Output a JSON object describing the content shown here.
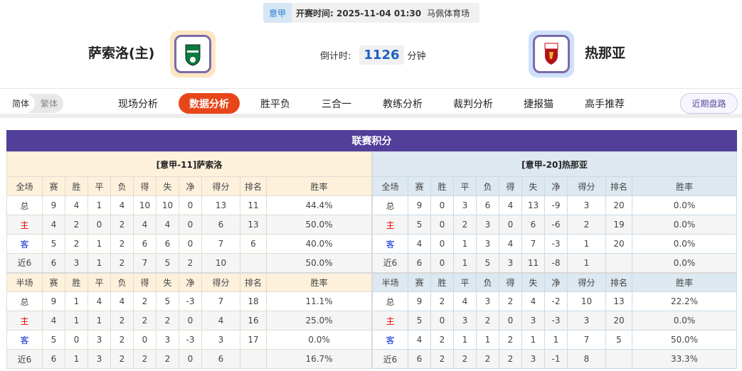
{
  "header": {
    "league": "意甲",
    "kickoff": "开赛时间: 2025-11-04 01:30",
    "venue": "马佩体育场",
    "home_team": "萨索洛(主)",
    "away_team": "热那亚",
    "countdown_label": "倒计时:",
    "countdown_value": "1126",
    "countdown_unit": "分钟"
  },
  "nav": {
    "lang": [
      "简体",
      "繁体"
    ],
    "items": [
      "现场分析",
      "数据分析",
      "胜平负",
      "三合一",
      "教练分析",
      "裁判分析",
      "捷报猫",
      "高手推荐"
    ],
    "active": "数据分析",
    "recent": "近期盘路"
  },
  "colors": {
    "accent": "#e8461a",
    "panel": "#523f9a"
  },
  "standings": {
    "title": "联赛积分",
    "full_headers": [
      "全场",
      "赛",
      "胜",
      "平",
      "负",
      "得",
      "失",
      "净",
      "得分",
      "排名",
      "胜率"
    ],
    "half_headers": [
      "半场",
      "赛",
      "胜",
      "平",
      "负",
      "得",
      "失",
      "净",
      "得分",
      "排名",
      "胜率"
    ],
    "home": {
      "title": "[意甲-11]萨索洛",
      "full": [
        [
          "总",
          "9",
          "4",
          "1",
          "4",
          "10",
          "10",
          "0",
          "13",
          "11",
          "44.4%"
        ],
        [
          "主",
          "4",
          "2",
          "0",
          "2",
          "4",
          "4",
          "0",
          "6",
          "13",
          "50.0%"
        ],
        [
          "客",
          "5",
          "2",
          "1",
          "2",
          "6",
          "6",
          "0",
          "7",
          "6",
          "40.0%"
        ],
        [
          "近6",
          "6",
          "3",
          "1",
          "2",
          "7",
          "5",
          "2",
          "10",
          "",
          "50.0%"
        ]
      ],
      "half": [
        [
          "总",
          "9",
          "1",
          "4",
          "4",
          "2",
          "5",
          "-3",
          "7",
          "18",
          "11.1%"
        ],
        [
          "主",
          "4",
          "1",
          "1",
          "2",
          "2",
          "2",
          "0",
          "4",
          "16",
          "25.0%"
        ],
        [
          "客",
          "5",
          "0",
          "3",
          "2",
          "0",
          "3",
          "-3",
          "3",
          "17",
          "0.0%"
        ],
        [
          "近6",
          "6",
          "1",
          "3",
          "2",
          "2",
          "2",
          "0",
          "6",
          "",
          "16.7%"
        ]
      ]
    },
    "away": {
      "title": "[意甲-20]热那亚",
      "full": [
        [
          "总",
          "9",
          "0",
          "3",
          "6",
          "4",
          "13",
          "-9",
          "3",
          "20",
          "0.0%"
        ],
        [
          "主",
          "5",
          "0",
          "2",
          "3",
          "0",
          "6",
          "-6",
          "2",
          "19",
          "0.0%"
        ],
        [
          "客",
          "4",
          "0",
          "1",
          "3",
          "4",
          "7",
          "-3",
          "1",
          "20",
          "0.0%"
        ],
        [
          "近6",
          "6",
          "0",
          "1",
          "5",
          "3",
          "11",
          "-8",
          "1",
          "",
          "0.0%"
        ]
      ],
      "half": [
        [
          "总",
          "9",
          "2",
          "4",
          "3",
          "2",
          "4",
          "-2",
          "10",
          "13",
          "22.2%"
        ],
        [
          "主",
          "5",
          "0",
          "3",
          "2",
          "0",
          "3",
          "-3",
          "3",
          "20",
          "0.0%"
        ],
        [
          "客",
          "4",
          "2",
          "1",
          "1",
          "2",
          "1",
          "1",
          "7",
          "5",
          "50.0%"
        ],
        [
          "近6",
          "6",
          "2",
          "2",
          "2",
          "2",
          "3",
          "-1",
          "8",
          "",
          "33.3%"
        ]
      ]
    }
  }
}
